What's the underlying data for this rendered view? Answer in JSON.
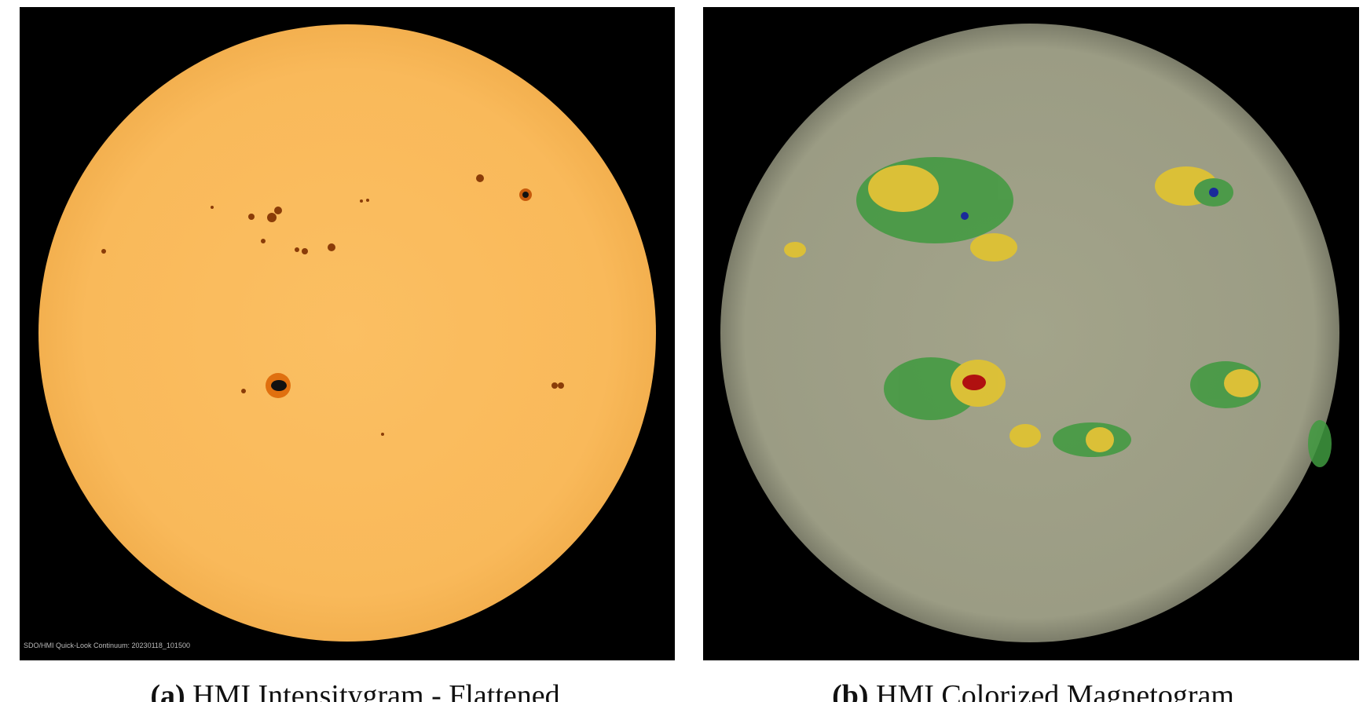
{
  "figure": {
    "panels": [
      {
        "label": "(a)",
        "caption": "HMI Intensitygram - Flattened",
        "overlay_text": "SDO/HMI Quick-Look Continuum: 20230118_101500"
      },
      {
        "label": "(b)",
        "caption": "HMI Colorized Magnetogram"
      }
    ]
  }
}
